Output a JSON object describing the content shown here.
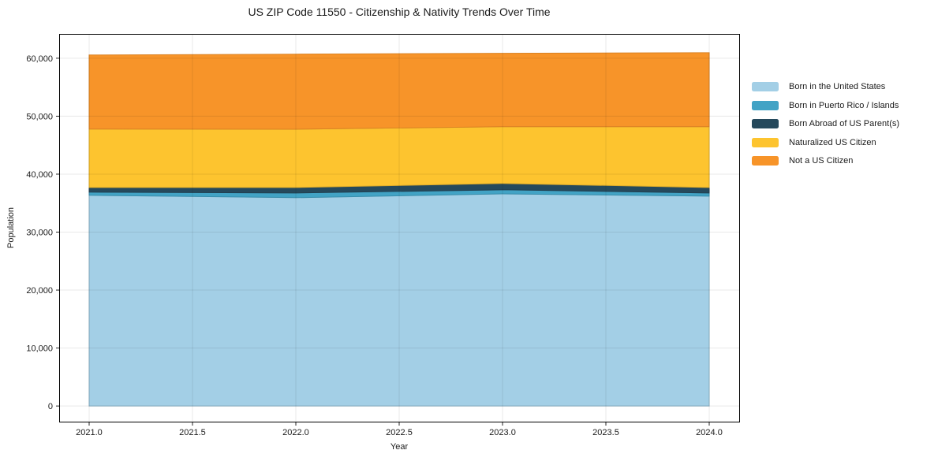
{
  "chart_data": {
    "type": "area",
    "stacked": true,
    "title": "US ZIP Code 11550 - Citizenship & Nativity Trends Over Time",
    "xlabel": "Year",
    "ylabel": "Population",
    "x": [
      2021,
      2022,
      2023,
      2024
    ],
    "series": [
      {
        "name": "Born in the United States",
        "color": "#A3CFE6",
        "values": [
          36350,
          35950,
          36600,
          36200
        ]
      },
      {
        "name": "Born in Puerto Rico / Islands",
        "color": "#42A3C5",
        "values": [
          550,
          800,
          700,
          550
        ]
      },
      {
        "name": "Born Abroad of US Parent(s)",
        "color": "#25495C",
        "values": [
          800,
          950,
          1100,
          950
        ]
      },
      {
        "name": "Naturalized US Citizen",
        "color": "#FDC42F",
        "values": [
          10070,
          10050,
          9800,
          10480
        ]
      },
      {
        "name": "Not a US Citizen",
        "color": "#F79429",
        "values": [
          12780,
          12950,
          12650,
          12770
        ]
      }
    ],
    "x_ticks": {
      "values": [
        2021,
        2021.5,
        2022,
        2022.5,
        2023,
        2023.5,
        2024
      ],
      "labels": [
        "2021.0",
        "2021.5",
        "2022.0",
        "2022.5",
        "2023.0",
        "2023.5",
        "2024.0"
      ]
    },
    "y_ticks": {
      "values": [
        0,
        10000,
        20000,
        30000,
        40000,
        50000,
        60000
      ],
      "labels": [
        "0",
        "10,000",
        "20,000",
        "30,000",
        "40,000",
        "50,000",
        "60,000"
      ]
    },
    "xlim": [
      2020.855,
      2024.145
    ],
    "ylim": [
      -2700,
      64200
    ],
    "grid": true,
    "legend_position": "right"
  },
  "colors": {
    "grid_rgba": "rgba(0,0,0,0.09)",
    "frame": "#000000",
    "tick": "#262626",
    "text": "#1a1a1a"
  }
}
